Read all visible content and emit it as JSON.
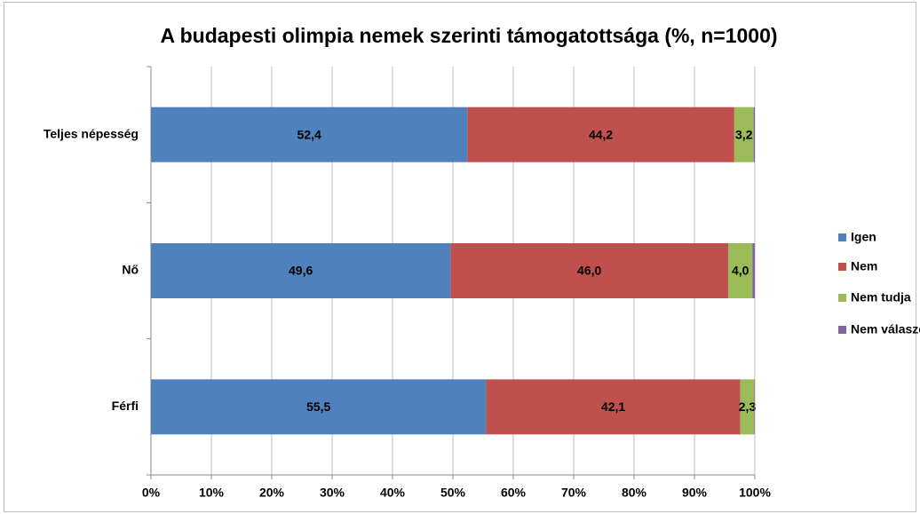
{
  "chart_data": {
    "type": "stacked-barh",
    "title": "A budapesti olimpia nemek szerinti támogatottsága (%, n=1000)",
    "categories": [
      "Teljes népesség",
      "Nő",
      "Férfi"
    ],
    "series": [
      {
        "name": "Igen",
        "color": "#4f81bd",
        "values": [
          52.4,
          49.6,
          55.5
        ],
        "value_labels": [
          "52,4",
          "49,6",
          "55,5"
        ]
      },
      {
        "name": "Nem",
        "color": "#c0504d",
        "values": [
          44.2,
          46.0,
          42.1
        ],
        "value_labels": [
          "44,2",
          "46,0",
          "42,1"
        ]
      },
      {
        "name": "Nem tudja",
        "color": "#9bbb59",
        "values": [
          3.2,
          4.0,
          2.3
        ],
        "value_labels": [
          "3,2",
          "4,0",
          "2,3"
        ]
      },
      {
        "name": "Nem válaszol",
        "color": "#8064a2",
        "values": [
          0.2,
          0.4,
          0.1
        ]
      }
    ],
    "xlim": [
      0,
      100
    ],
    "xticks": [
      {
        "value": 0,
        "label": "0%"
      },
      {
        "value": 10,
        "label": "10%"
      },
      {
        "value": 20,
        "label": "20%"
      },
      {
        "value": 30,
        "label": "30%"
      },
      {
        "value": 40,
        "label": "40%"
      },
      {
        "value": 50,
        "label": "50%"
      },
      {
        "value": 60,
        "label": "60%"
      },
      {
        "value": 70,
        "label": "70%"
      },
      {
        "value": 80,
        "label": "80%"
      },
      {
        "value": 90,
        "label": "90%"
      },
      {
        "value": 100,
        "label": "100%"
      }
    ],
    "grid": true,
    "legend": "right"
  }
}
